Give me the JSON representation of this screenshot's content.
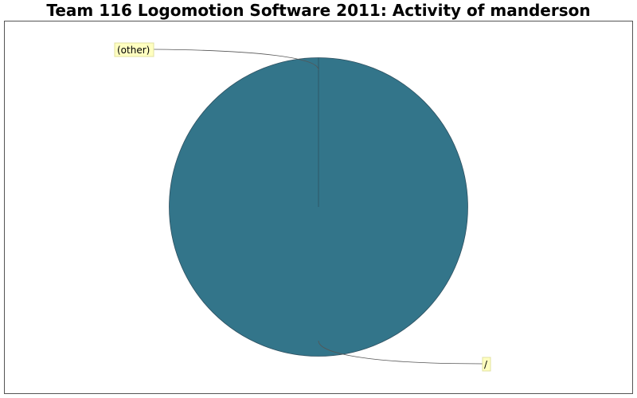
{
  "chart_data": {
    "type": "pie",
    "title": "Team 116 Logomotion Software 2011: Activity of manderson",
    "slices": [
      {
        "label": "/",
        "value": 99.9
      },
      {
        "label": "(other)",
        "value": 0.1
      }
    ],
    "colors": {
      "slice": "#33758a",
      "slice_edge": "#2e5060",
      "label_bg": "#ffffc0",
      "label_border": "#e0e0a0",
      "leader": "#555555",
      "frame": "#555555"
    }
  }
}
